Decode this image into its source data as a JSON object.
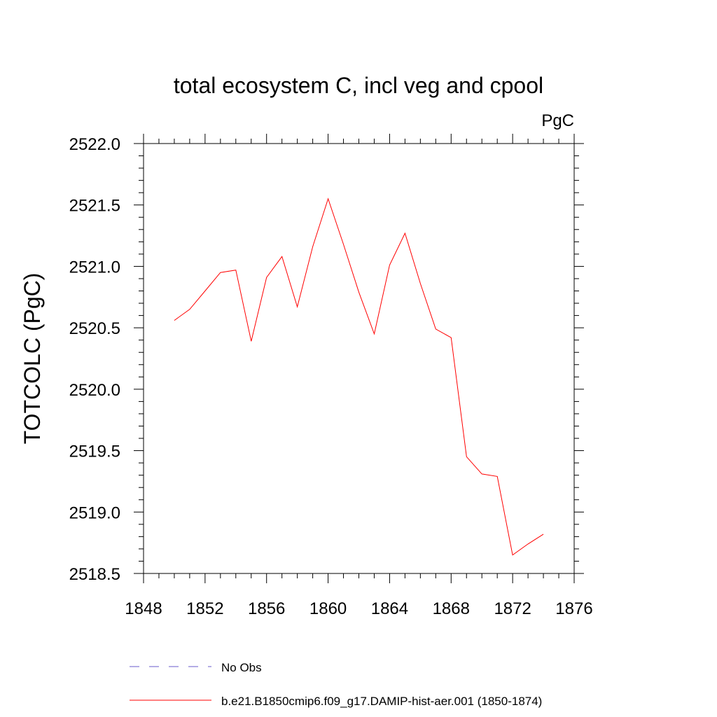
{
  "chart_data": {
    "type": "line",
    "title": "total ecosystem C, incl veg and cpool",
    "units_label": "PgC",
    "ylabel": "TOTCOLC  (PgC)",
    "xlabel": "",
    "xlim": [
      1848,
      1876
    ],
    "ylim": [
      2518.5,
      2522.0
    ],
    "x_ticks": [
      1848,
      1852,
      1856,
      1860,
      1864,
      1868,
      1872,
      1876
    ],
    "y_ticks": [
      "2518.5",
      "2519.0",
      "2519.5",
      "2520.0",
      "2520.5",
      "2521.0",
      "2521.5",
      "2522.0"
    ],
    "grid": false,
    "legend_position": "bottom",
    "series": [
      {
        "name": "b.e21.B1850cmip6.f09_g17.DAMIP-hist-aer.001 (1850-1874)",
        "color": "#ff0000",
        "style": "solid",
        "x": [
          1850,
          1851,
          1852,
          1853,
          1854,
          1855,
          1856,
          1857,
          1858,
          1859,
          1860,
          1861,
          1862,
          1863,
          1864,
          1865,
          1866,
          1867,
          1868,
          1869,
          1870,
          1871,
          1872,
          1873,
          1874
        ],
        "y": [
          2520.56,
          2520.65,
          2520.8,
          2520.95,
          2520.97,
          2520.39,
          2520.91,
          2521.08,
          2520.67,
          2521.16,
          2521.55,
          2521.18,
          2520.79,
          2520.45,
          2521.01,
          2521.27,
          2520.86,
          2520.49,
          2520.42,
          2519.45,
          2519.31,
          2519.29,
          2518.65,
          2518.74,
          2518.82
        ]
      }
    ],
    "legend": [
      {
        "label": "No Obs",
        "color": "#6a5acd",
        "style": "dashed"
      },
      {
        "label": "b.e21.B1850cmip6.f09_g17.DAMIP-hist-aer.001 (1850-1874)",
        "color": "#ff0000",
        "style": "solid"
      }
    ]
  }
}
